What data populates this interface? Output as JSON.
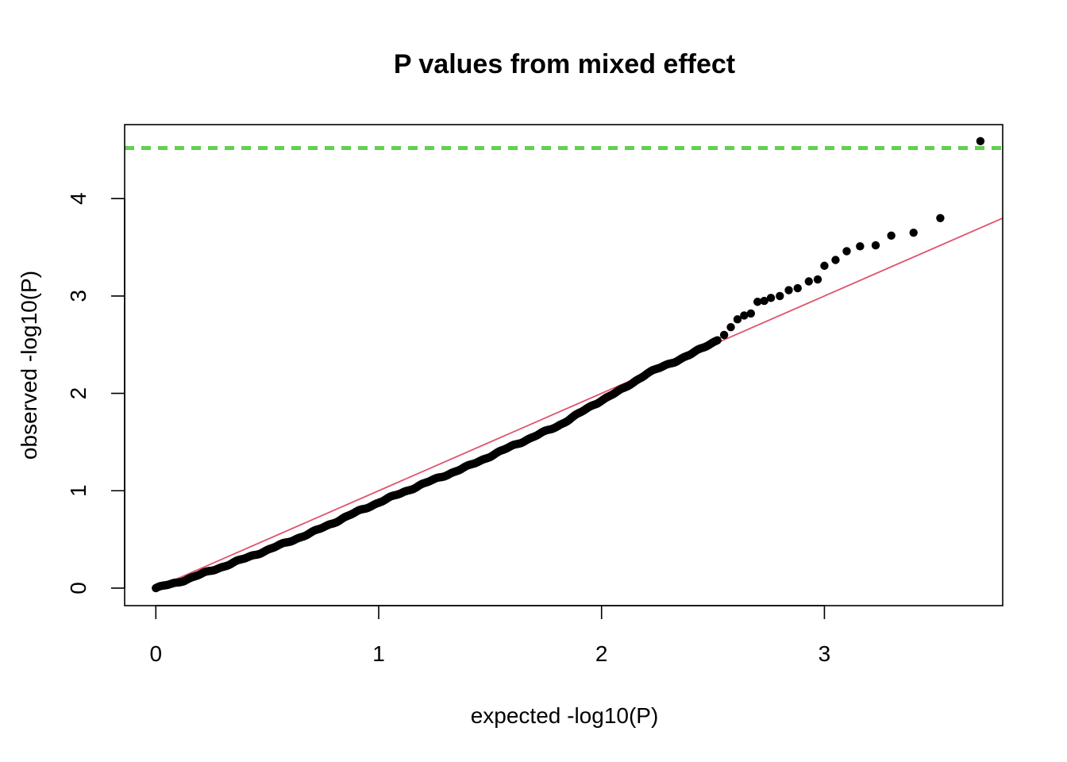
{
  "chart_data": {
    "type": "scatter",
    "title": "P values from mixed effect",
    "xlabel": "expected -log10(P)",
    "ylabel": "observed -log10(P)",
    "xlim": [
      -0.14,
      3.8
    ],
    "ylim": [
      -0.18,
      4.76
    ],
    "xticks": [
      "0",
      "1",
      "2",
      "3"
    ],
    "yticks": [
      "0",
      "1",
      "2",
      "3",
      "4"
    ],
    "grid": false,
    "legend": "none",
    "colors": {
      "points": "#000000",
      "reference_line": "#df536b",
      "threshold_line": "#61d04f",
      "frame": "#000000"
    },
    "reference_line": {
      "slope": 1,
      "intercept": 0
    },
    "threshold": {
      "y": 4.52,
      "style": "dashed"
    },
    "curve_anchors": [
      [
        0.0,
        0.0
      ],
      [
        0.1,
        0.06
      ],
      [
        0.3,
        0.22
      ],
      [
        0.5,
        0.39
      ],
      [
        0.7,
        0.57
      ],
      [
        0.9,
        0.78
      ],
      [
        1.0,
        0.88
      ],
      [
        1.2,
        1.07
      ],
      [
        1.4,
        1.25
      ],
      [
        1.6,
        1.46
      ],
      [
        1.8,
        1.66
      ],
      [
        2.0,
        1.93
      ],
      [
        2.1,
        2.05
      ],
      [
        2.2,
        2.2
      ],
      [
        2.3,
        2.3
      ],
      [
        2.4,
        2.4
      ],
      [
        2.52,
        2.55
      ]
    ],
    "tail_points": [
      [
        2.55,
        2.6
      ],
      [
        2.58,
        2.68
      ],
      [
        2.61,
        2.76
      ],
      [
        2.64,
        2.8
      ],
      [
        2.67,
        2.82
      ],
      [
        2.7,
        2.94
      ],
      [
        2.73,
        2.95
      ],
      [
        2.76,
        2.98
      ],
      [
        2.8,
        3.0
      ],
      [
        2.84,
        3.06
      ],
      [
        2.88,
        3.08
      ],
      [
        2.93,
        3.15
      ],
      [
        2.97,
        3.17
      ],
      [
        3.0,
        3.31
      ],
      [
        3.05,
        3.37
      ],
      [
        3.1,
        3.46
      ],
      [
        3.16,
        3.51
      ],
      [
        3.23,
        3.52
      ],
      [
        3.3,
        3.62
      ],
      [
        3.4,
        3.65
      ],
      [
        3.52,
        3.8
      ],
      [
        3.7,
        4.59
      ]
    ]
  }
}
